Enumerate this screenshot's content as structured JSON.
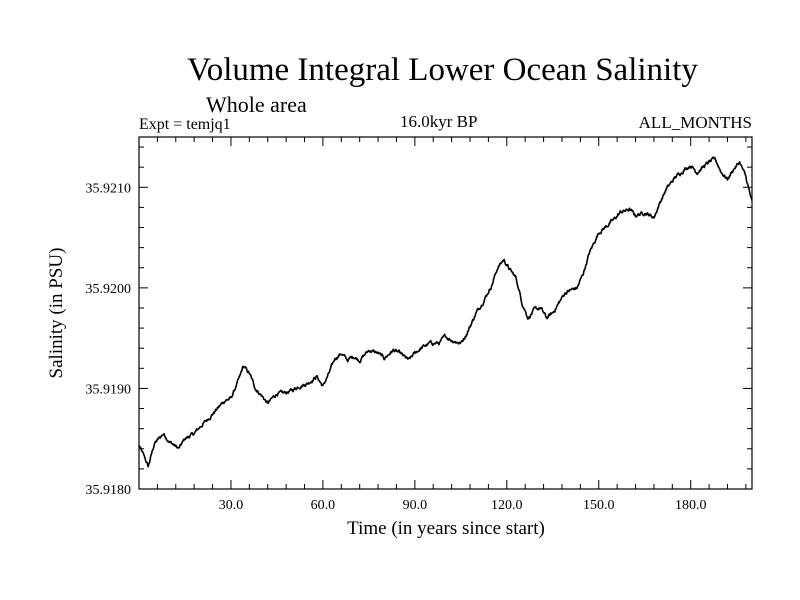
{
  "header": {
    "title": "Volume Integral Lower Ocean Salinity",
    "subtitle": "Whole area",
    "experiment": "Expt = temjq1",
    "period": "16.0kyr BP",
    "months": "ALL_MONTHS"
  },
  "chart_data": {
    "type": "line",
    "title": "Volume Integral Lower Ocean Salinity",
    "subtitle": "Whole area",
    "xlabel": "Time (in years since start)",
    "ylabel": "Salinity (in PSU)",
    "xlim": [
      0,
      200
    ],
    "ylim": [
      35.918,
      35.9215
    ],
    "xticks": [
      30,
      60,
      90,
      120,
      150,
      180
    ],
    "xtick_labels": [
      "30.0",
      "60.0",
      "90.0",
      "120.0",
      "150.0",
      "180.0"
    ],
    "yticks": [
      35.918,
      35.919,
      35.92,
      35.921
    ],
    "ytick_labels": [
      "35.9180",
      "35.9190",
      "35.9200",
      "35.9210"
    ],
    "grid": false,
    "series": [
      {
        "name": "Salinity",
        "x": [
          0,
          2,
          3,
          5,
          8,
          10,
          13,
          15,
          18,
          20,
          22,
          25,
          28,
          30,
          33,
          34,
          36,
          38,
          40,
          42,
          45,
          47,
          50,
          52,
          55,
          58,
          60,
          62,
          64,
          66,
          68,
          70,
          72,
          75,
          78,
          80,
          83,
          85,
          88,
          90,
          92,
          95,
          98,
          100,
          102,
          105,
          107,
          110,
          112,
          115,
          117,
          119,
          121,
          123,
          125,
          127,
          129,
          131,
          133,
          135,
          137,
          139,
          141,
          143,
          145,
          147,
          150,
          152,
          155,
          157,
          160,
          162,
          165,
          168,
          170,
          172,
          175,
          178,
          180,
          182,
          184,
          186,
          188,
          190,
          192,
          194,
          196,
          198,
          200
        ],
        "values": [
          35.91843,
          35.9183,
          35.91822,
          35.91845,
          35.91855,
          35.91847,
          35.9184,
          35.9185,
          35.91855,
          35.91862,
          35.91868,
          35.91878,
          35.91888,
          35.9189,
          35.91912,
          35.91922,
          35.91915,
          35.919,
          35.91893,
          35.91885,
          35.91895,
          35.91895,
          35.91898,
          35.91902,
          35.91905,
          35.91912,
          35.91902,
          35.91915,
          35.9193,
          35.91935,
          35.91928,
          35.91932,
          35.91928,
          35.91938,
          35.91935,
          35.9193,
          35.91938,
          35.91935,
          35.91928,
          35.91935,
          35.9194,
          35.91945,
          35.91945,
          35.91952,
          35.91948,
          35.91945,
          35.91955,
          35.91975,
          35.91985,
          35.92002,
          35.9202,
          35.92028,
          35.92018,
          35.9201,
          35.91985,
          35.9197,
          35.91978,
          35.9198,
          35.9197,
          35.91975,
          35.91985,
          35.91995,
          35.91998,
          35.92,
          35.92015,
          35.92035,
          35.92055,
          35.9206,
          35.92068,
          35.92075,
          35.92078,
          35.92072,
          35.92075,
          35.9207,
          35.92085,
          35.92098,
          35.9211,
          35.92118,
          35.92122,
          35.92115,
          35.9212,
          35.92125,
          35.92128,
          35.92115,
          35.92108,
          35.92118,
          35.92125,
          35.9211,
          35.92085
        ]
      }
    ]
  }
}
